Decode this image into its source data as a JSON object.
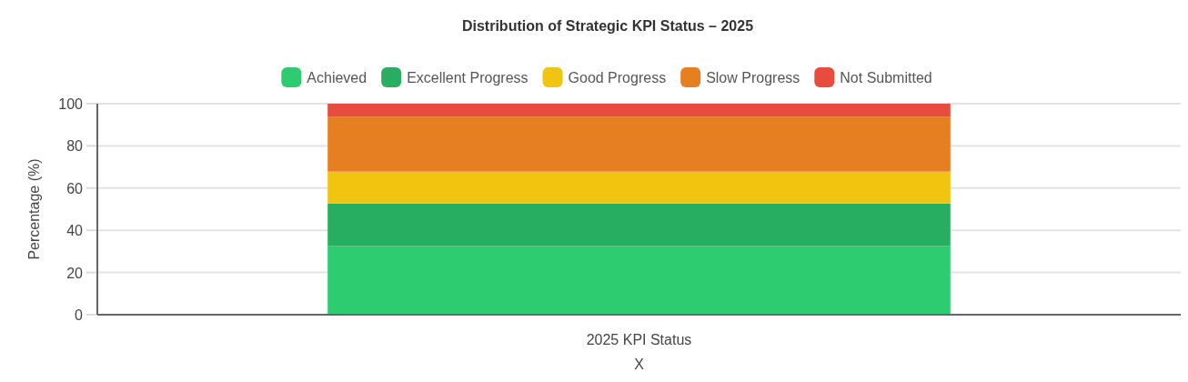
{
  "chart_data": {
    "type": "bar",
    "title": "Distribution of Strategic KPI Status – 2025",
    "xlabel": "X",
    "ylabel": "Percentage (%)",
    "categories": [
      "2025 KPI Status"
    ],
    "stacked": true,
    "ylim": [
      0,
      100
    ],
    "yticks": [
      0,
      20,
      40,
      60,
      80,
      100
    ],
    "grid": "y",
    "legend": "top",
    "series": [
      {
        "name": "Achieved",
        "color": "#2ecc71",
        "values": [
          32.5
        ]
      },
      {
        "name": "Excellent Progress",
        "color": "#27ae60",
        "values": [
          20.2
        ]
      },
      {
        "name": "Good Progress",
        "color": "#f1c40f",
        "values": [
          15.1
        ]
      },
      {
        "name": "Slow Progress",
        "color": "#e67e22",
        "values": [
          26.1
        ]
      },
      {
        "name": "Not Submitted",
        "color": "#e74c3c",
        "values": [
          6.1
        ]
      }
    ]
  }
}
